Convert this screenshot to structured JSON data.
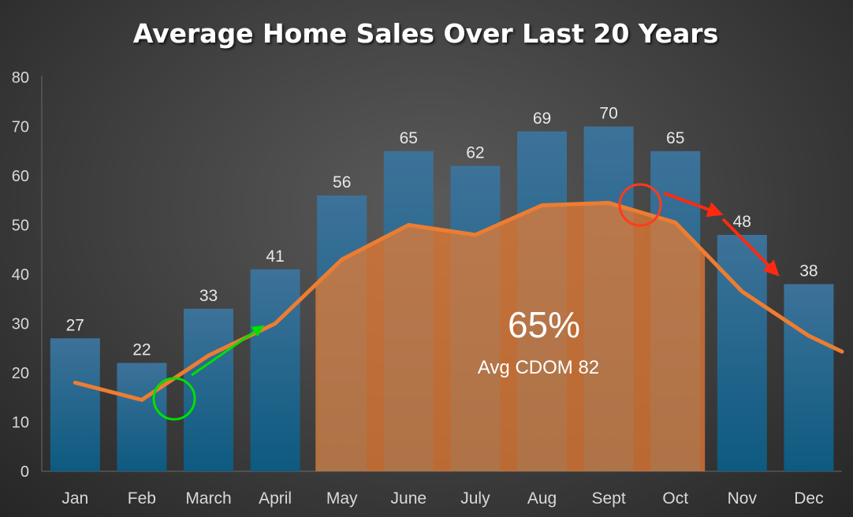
{
  "chart_data": {
    "type": "bar",
    "title": "Average Home Sales Over Last 20 Years",
    "categories": [
      "Jan",
      "Feb",
      "March",
      "April",
      "May",
      "June",
      "July",
      "Aug",
      "Sept",
      "Oct",
      "Nov",
      "Dec"
    ],
    "series": [
      {
        "type": "bar",
        "values": [
          27,
          22,
          33,
          41,
          56,
          65,
          62,
          69,
          70,
          65,
          48,
          38
        ],
        "color": "#1a5f85"
      },
      {
        "type": "line",
        "values": [
          18,
          14.5,
          23.5,
          30,
          43,
          50,
          48,
          54,
          54.5,
          50.5,
          36.5,
          27.5
        ],
        "color": "#ed7d31"
      }
    ],
    "ylim": [
      0,
      80
    ],
    "yticks": [
      0,
      10,
      20,
      30,
      40,
      50,
      60,
      70,
      80
    ],
    "highlight": {
      "from": "May",
      "to": "Oct",
      "color": "#ed7d31"
    },
    "annotation": {
      "percent": "65%",
      "caption": "Avg CDOM 82"
    },
    "markers": [
      {
        "category": "Feb",
        "color": "#00e000",
        "shape": "circle"
      },
      {
        "category": "Sept",
        "color": "#ff3b1a",
        "shape": "circle"
      }
    ],
    "arrows": [
      {
        "color": "#00e000",
        "direction": "up-right"
      },
      {
        "color": "#ff2a10",
        "direction": "down-right"
      },
      {
        "color": "#ff2a10",
        "direction": "down-right"
      }
    ],
    "grid": false,
    "legend": "none"
  }
}
